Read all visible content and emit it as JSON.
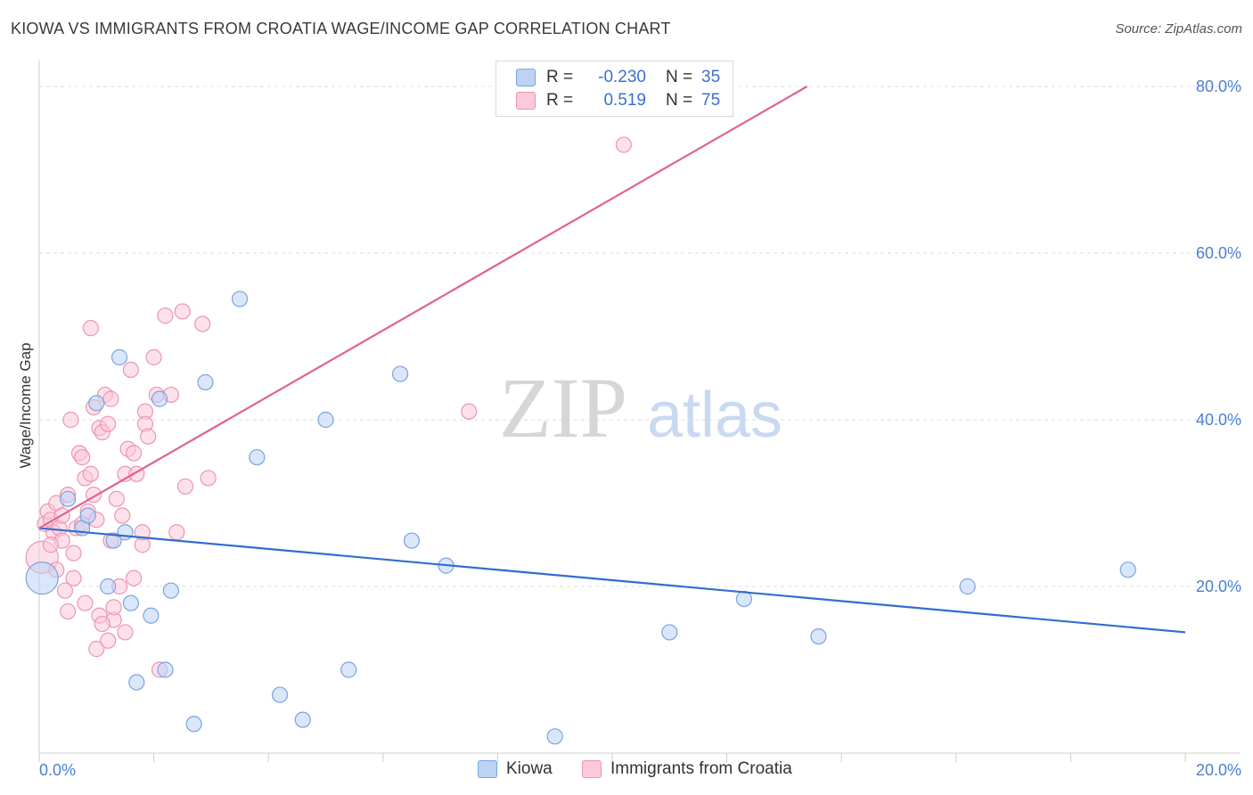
{
  "header": {
    "title": "KIOWA VS IMMIGRANTS FROM CROATIA WAGE/INCOME GAP CORRELATION CHART",
    "source": "Source: ZipAtlas.com"
  },
  "watermark": {
    "zip": "ZIP",
    "atlas": "atlas"
  },
  "legend": {
    "rows": [
      {
        "r_label": "R = ",
        "r_value": "-0.230",
        "n_label": "N = ",
        "n_value": "35"
      },
      {
        "r_label": "R = ",
        "r_value": "0.519",
        "n_label": "N = ",
        "n_value": "75"
      }
    ]
  },
  "bottom_legend": {
    "series1": "Kiowa",
    "series2": "Immigrants from Croatia"
  },
  "colors": {
    "blue_fill": "#bcd3f5",
    "blue_stroke": "#7aa3e0",
    "blue_line": "#2f6fcf",
    "pink_fill": "#fbc9d8",
    "pink_stroke": "#ec95b2",
    "pink_line": "#e0628f",
    "grid": "#dddddd",
    "axis_text": "#4a7fd0"
  },
  "chart_data": {
    "type": "scatter",
    "title": "KIOWA VS IMMIGRANTS FROM CROATIA WAGE/INCOME GAP CORRELATION CHART",
    "xlabel": "",
    "ylabel": "Wage/Income Gap",
    "xlim": [
      0,
      20
    ],
    "ylim": [
      0,
      80
    ],
    "x_tick_labels": [
      "0.0%",
      "20.0%"
    ],
    "y_ticks": [
      20,
      40,
      60,
      80
    ],
    "y_tick_labels": [
      "20.0%",
      "40.0%",
      "60.0%",
      "80.0%"
    ],
    "grid": true,
    "series": [
      {
        "name": "Kiowa",
        "r": -0.23,
        "n": 35,
        "trend": {
          "x": [
            0,
            20
          ],
          "y": [
            27.0,
            14.5
          ]
        },
        "points": [
          {
            "x": 0.05,
            "y": 21.0,
            "big": true
          },
          {
            "x": 0.5,
            "y": 30.5
          },
          {
            "x": 0.75,
            "y": 27.0
          },
          {
            "x": 0.85,
            "y": 28.5
          },
          {
            "x": 1.0,
            "y": 42.0
          },
          {
            "x": 1.2,
            "y": 20.0
          },
          {
            "x": 1.3,
            "y": 25.5
          },
          {
            "x": 1.4,
            "y": 47.5
          },
          {
            "x": 1.5,
            "y": 26.5
          },
          {
            "x": 1.6,
            "y": 18.0
          },
          {
            "x": 1.7,
            "y": 8.5
          },
          {
            "x": 1.95,
            "y": 16.5
          },
          {
            "x": 2.1,
            "y": 42.5
          },
          {
            "x": 2.2,
            "y": 10.0
          },
          {
            "x": 2.3,
            "y": 19.5
          },
          {
            "x": 2.7,
            "y": 3.5
          },
          {
            "x": 2.9,
            "y": 44.5
          },
          {
            "x": 3.5,
            "y": 54.5
          },
          {
            "x": 3.8,
            "y": 35.5
          },
          {
            "x": 4.2,
            "y": 7.0
          },
          {
            "x": 4.6,
            "y": 4.0
          },
          {
            "x": 5.0,
            "y": 40.0
          },
          {
            "x": 5.4,
            "y": 10.0
          },
          {
            "x": 6.3,
            "y": 45.5
          },
          {
            "x": 6.5,
            "y": 25.5
          },
          {
            "x": 7.1,
            "y": 22.5
          },
          {
            "x": 9.0,
            "y": 2.0
          },
          {
            "x": 11.0,
            "y": 14.5
          },
          {
            "x": 12.3,
            "y": 18.5
          },
          {
            "x": 13.6,
            "y": 14.0
          },
          {
            "x": 16.2,
            "y": 20.0
          },
          {
            "x": 19.0,
            "y": 22.0
          }
        ]
      },
      {
        "name": "Immigrants from Croatia",
        "r": 0.519,
        "n": 75,
        "trend": {
          "x": [
            0,
            13.4
          ],
          "y": [
            27.0,
            80.0
          ]
        },
        "points": [
          {
            "x": 0.05,
            "y": 23.5,
            "big": true
          },
          {
            "x": 0.1,
            "y": 27.5
          },
          {
            "x": 0.15,
            "y": 29.0
          },
          {
            "x": 0.2,
            "y": 28.0
          },
          {
            "x": 0.25,
            "y": 26.5
          },
          {
            "x": 0.3,
            "y": 30.0
          },
          {
            "x": 0.35,
            "y": 27.0
          },
          {
            "x": 0.4,
            "y": 25.5
          },
          {
            "x": 0.45,
            "y": 19.5
          },
          {
            "x": 0.5,
            "y": 17.0
          },
          {
            "x": 0.5,
            "y": 31.0
          },
          {
            "x": 0.55,
            "y": 40.0
          },
          {
            "x": 0.6,
            "y": 21.0
          },
          {
            "x": 0.65,
            "y": 27.0
          },
          {
            "x": 0.7,
            "y": 36.0
          },
          {
            "x": 0.75,
            "y": 35.5
          },
          {
            "x": 0.75,
            "y": 27.5
          },
          {
            "x": 0.8,
            "y": 33.0
          },
          {
            "x": 0.8,
            "y": 18.0
          },
          {
            "x": 0.85,
            "y": 29.0
          },
          {
            "x": 0.9,
            "y": 51.0
          },
          {
            "x": 0.9,
            "y": 33.5
          },
          {
            "x": 0.95,
            "y": 41.5
          },
          {
            "x": 0.95,
            "y": 31.0
          },
          {
            "x": 1.0,
            "y": 28.0
          },
          {
            "x": 1.0,
            "y": 12.5
          },
          {
            "x": 1.05,
            "y": 39.0
          },
          {
            "x": 1.05,
            "y": 16.5
          },
          {
            "x": 1.1,
            "y": 38.5
          },
          {
            "x": 1.15,
            "y": 43.0
          },
          {
            "x": 1.2,
            "y": 39.5
          },
          {
            "x": 1.2,
            "y": 13.5
          },
          {
            "x": 1.25,
            "y": 42.5
          },
          {
            "x": 1.25,
            "y": 25.5
          },
          {
            "x": 1.3,
            "y": 16.0
          },
          {
            "x": 1.3,
            "y": 17.5
          },
          {
            "x": 1.35,
            "y": 30.5
          },
          {
            "x": 1.4,
            "y": 20.0
          },
          {
            "x": 1.45,
            "y": 28.5
          },
          {
            "x": 1.5,
            "y": 14.5
          },
          {
            "x": 1.5,
            "y": 33.5
          },
          {
            "x": 1.55,
            "y": 36.5
          },
          {
            "x": 1.6,
            "y": 46.0
          },
          {
            "x": 1.65,
            "y": 21.0
          },
          {
            "x": 1.65,
            "y": 36.0
          },
          {
            "x": 1.7,
            "y": 33.5
          },
          {
            "x": 1.8,
            "y": 25.0
          },
          {
            "x": 1.8,
            "y": 26.5
          },
          {
            "x": 1.85,
            "y": 41.0
          },
          {
            "x": 1.85,
            "y": 39.5
          },
          {
            "x": 1.9,
            "y": 38.0
          },
          {
            "x": 2.0,
            "y": 47.5
          },
          {
            "x": 2.05,
            "y": 43.0
          },
          {
            "x": 2.1,
            "y": 10.0
          },
          {
            "x": 2.2,
            "y": 52.5
          },
          {
            "x": 2.3,
            "y": 43.0
          },
          {
            "x": 2.5,
            "y": 53.0
          },
          {
            "x": 2.4,
            "y": 26.5
          },
          {
            "x": 2.55,
            "y": 32.0
          },
          {
            "x": 2.85,
            "y": 51.5
          },
          {
            "x": 2.95,
            "y": 33.0
          },
          {
            "x": 7.5,
            "y": 41.0
          },
          {
            "x": 10.2,
            "y": 73.0
          },
          {
            "x": 0.3,
            "y": 22.0
          },
          {
            "x": 0.4,
            "y": 28.5
          },
          {
            "x": 0.6,
            "y": 24.0
          },
          {
            "x": 0.2,
            "y": 25.0
          },
          {
            "x": 1.1,
            "y": 15.5
          }
        ]
      }
    ]
  }
}
